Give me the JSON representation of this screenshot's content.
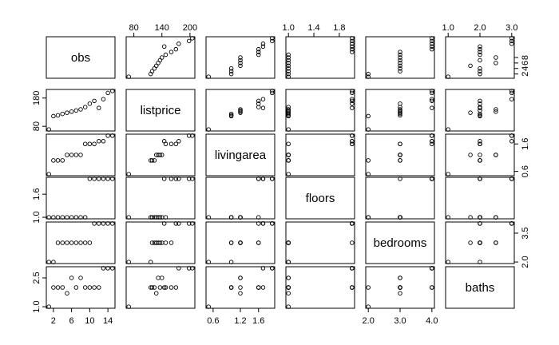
{
  "chart_data": {
    "type": "scatter",
    "title": "",
    "variables": [
      "obs",
      "listprice",
      "livingarea",
      "floors",
      "bedrooms",
      "baths"
    ],
    "n": 15,
    "data": {
      "obs": [
        1,
        2,
        3,
        4,
        5,
        6,
        7,
        8,
        9,
        10,
        11,
        12,
        13,
        14,
        15
      ],
      "listprice": [
        69,
        116,
        119,
        124,
        128,
        132,
        136,
        140,
        148,
        160,
        170,
        145,
        176,
        198,
        205
      ],
      "livingarea": [
        0.5,
        1.0,
        1.0,
        1.0,
        1.2,
        1.2,
        1.2,
        1.2,
        1.6,
        1.6,
        1.6,
        1.7,
        1.7,
        1.9,
        1.9
      ],
      "floors": [
        1,
        1,
        1,
        1,
        1,
        1,
        1,
        1,
        1,
        2,
        2,
        2,
        2,
        2,
        2
      ],
      "bedrooms": [
        2,
        2,
        3,
        3,
        3,
        3,
        3,
        3,
        3,
        3,
        4,
        4,
        4,
        4,
        4
      ],
      "baths": [
        1,
        2,
        2,
        2,
        1.7,
        2.5,
        2,
        2.5,
        2,
        2,
        2,
        2,
        3,
        3,
        3
      ]
    },
    "ranges": {
      "obs": [
        1,
        15
      ],
      "listprice": [
        69,
        205
      ],
      "livingarea": [
        0.5,
        1.9
      ],
      "floors": [
        1,
        2
      ],
      "bedrooms": [
        2,
        4
      ],
      "baths": [
        1,
        3
      ]
    },
    "axes": {
      "top_ticks": [
        null,
        [
          80,
          140,
          200
        ],
        null,
        [
          1.0,
          1.4,
          1.8
        ],
        null,
        [
          1.0,
          2.0,
          3.0
        ]
      ],
      "bottom_ticks": [
        [
          2,
          6,
          10,
          14
        ],
        null,
        [
          0.6,
          1.2,
          1.6
        ],
        null,
        [
          2.0,
          3.0,
          4.0
        ],
        null
      ],
      "left_ticks": [
        null,
        [
          80,
          180
        ],
        null,
        [
          1.0,
          1.6
        ],
        null,
        [
          1.0,
          2.5
        ]
      ],
      "right_ticks": [
        [
          2,
          4,
          6,
          8
        ],
        null,
        [
          0.6,
          1.6
        ],
        null,
        [
          2.0,
          3.5
        ],
        null
      ]
    },
    "tick_labels": {
      "top": [
        null,
        [
          "80",
          "140",
          "200"
        ],
        null,
        [
          "1.0",
          "1.4",
          "1.8"
        ],
        null,
        [
          "1.0",
          "2.0",
          "3.0"
        ]
      ],
      "bottom": [
        [
          "2",
          "6",
          "10",
          "14"
        ],
        null,
        [
          "0.6",
          "1.2",
          "1.6"
        ],
        null,
        [
          "2.0",
          "3.0",
          "4.0"
        ],
        null
      ],
      "left": [
        null,
        [
          "80",
          "180"
        ],
        null,
        [
          "1.0",
          "1.6"
        ],
        null,
        [
          "1.0",
          "2.5"
        ]
      ],
      "right": [
        [
          "2",
          "4",
          "6",
          "8"
        ],
        null,
        [
          "0.6",
          "1.6"
        ],
        null,
        [
          "2.0",
          "3.5"
        ],
        null
      ]
    },
    "grid": false,
    "legend": "none"
  }
}
